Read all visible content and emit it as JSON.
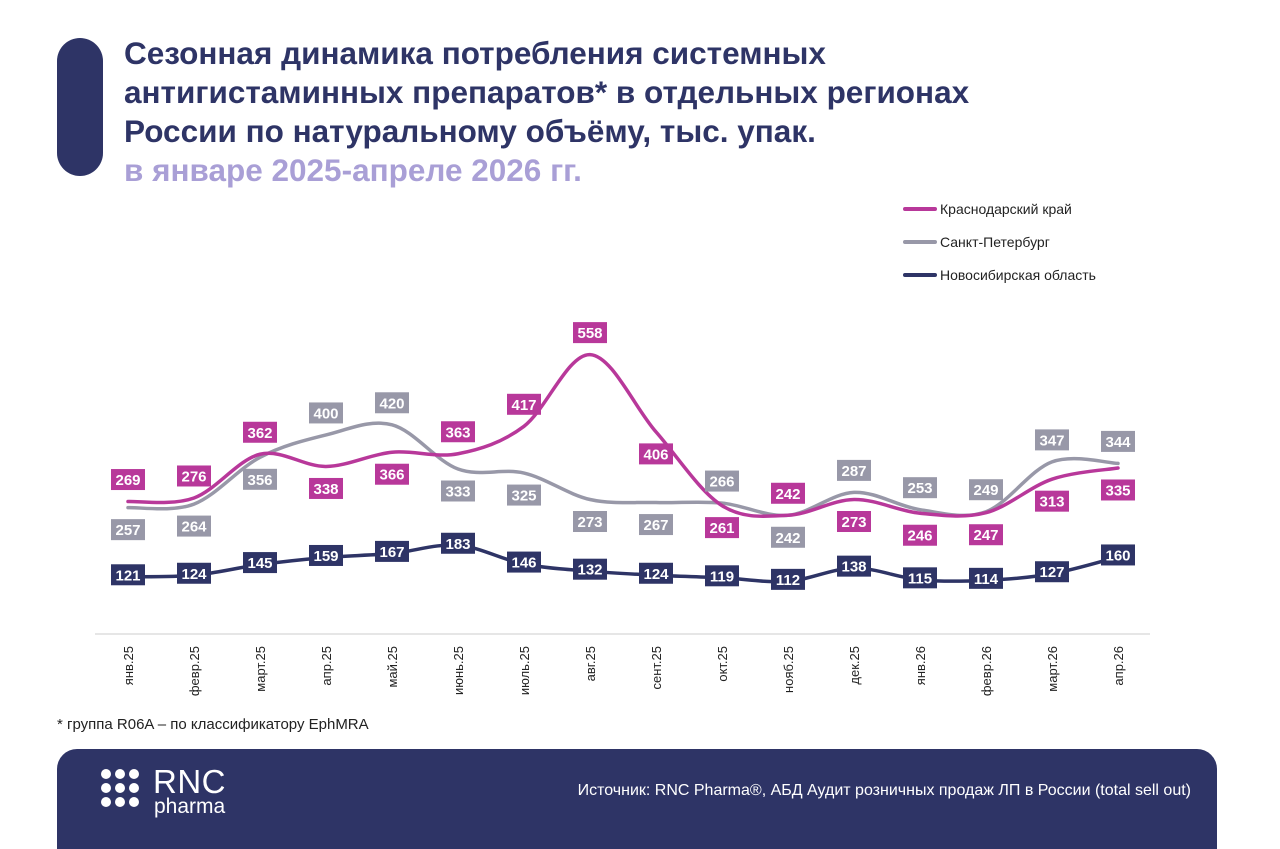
{
  "header": {
    "title_lines": [
      "Сезонная динамика потребления системных",
      "антигистаминных препаратов* в отдельных регионах",
      "России по натуральному объёму, тыс. упак."
    ],
    "subtitle": "в январе 2025-апреле 2026 гг."
  },
  "chart_data": {
    "type": "line",
    "title": "Сезонная динамика потребления системных антигистаминных препаратов* в отдельных регионах России по натуральному объёму, тыс. упак.",
    "subtitle": "в январе 2025-апреле 2026 гг.",
    "categories": [
      "янв.25",
      "февр.25",
      "март.25",
      "апр.25",
      "май.25",
      "июнь.25",
      "июль.25",
      "авг.25",
      "сент.25",
      "окт.25",
      "нояб.25",
      "дек.25",
      "янв.26",
      "февр.26",
      "март.26",
      "апр.26"
    ],
    "series": [
      {
        "name": "Краснодарский край",
        "color": "#b8389a",
        "values": [
          269,
          276,
          362,
          338,
          366,
          363,
          417,
          558,
          406,
          261,
          242,
          273,
          246,
          247,
          313,
          335
        ]
      },
      {
        "name": "Санкт-Петербург",
        "color": "#9898a8",
        "values": [
          257,
          264,
          356,
          400,
          420,
          333,
          325,
          273,
          267,
          266,
          242,
          287,
          253,
          249,
          347,
          344
        ]
      },
      {
        "name": "Новосибирская область",
        "color": "#2e3466",
        "values": [
          121,
          124,
          145,
          159,
          167,
          183,
          146,
          132,
          124,
          119,
          112,
          138,
          115,
          114,
          127,
          160
        ]
      }
    ],
    "legend_position": "top-right",
    "grid": false,
    "smooth": true,
    "data_labels": true
  },
  "footnote": "* группа R06A – по классификатору EphMRA",
  "footer": {
    "logo_top": "RNC",
    "logo_bottom": "pharma",
    "source": "Источник: RNC Pharma®, АБД Аудит розничных продаж ЛП в России (total sell out)"
  }
}
